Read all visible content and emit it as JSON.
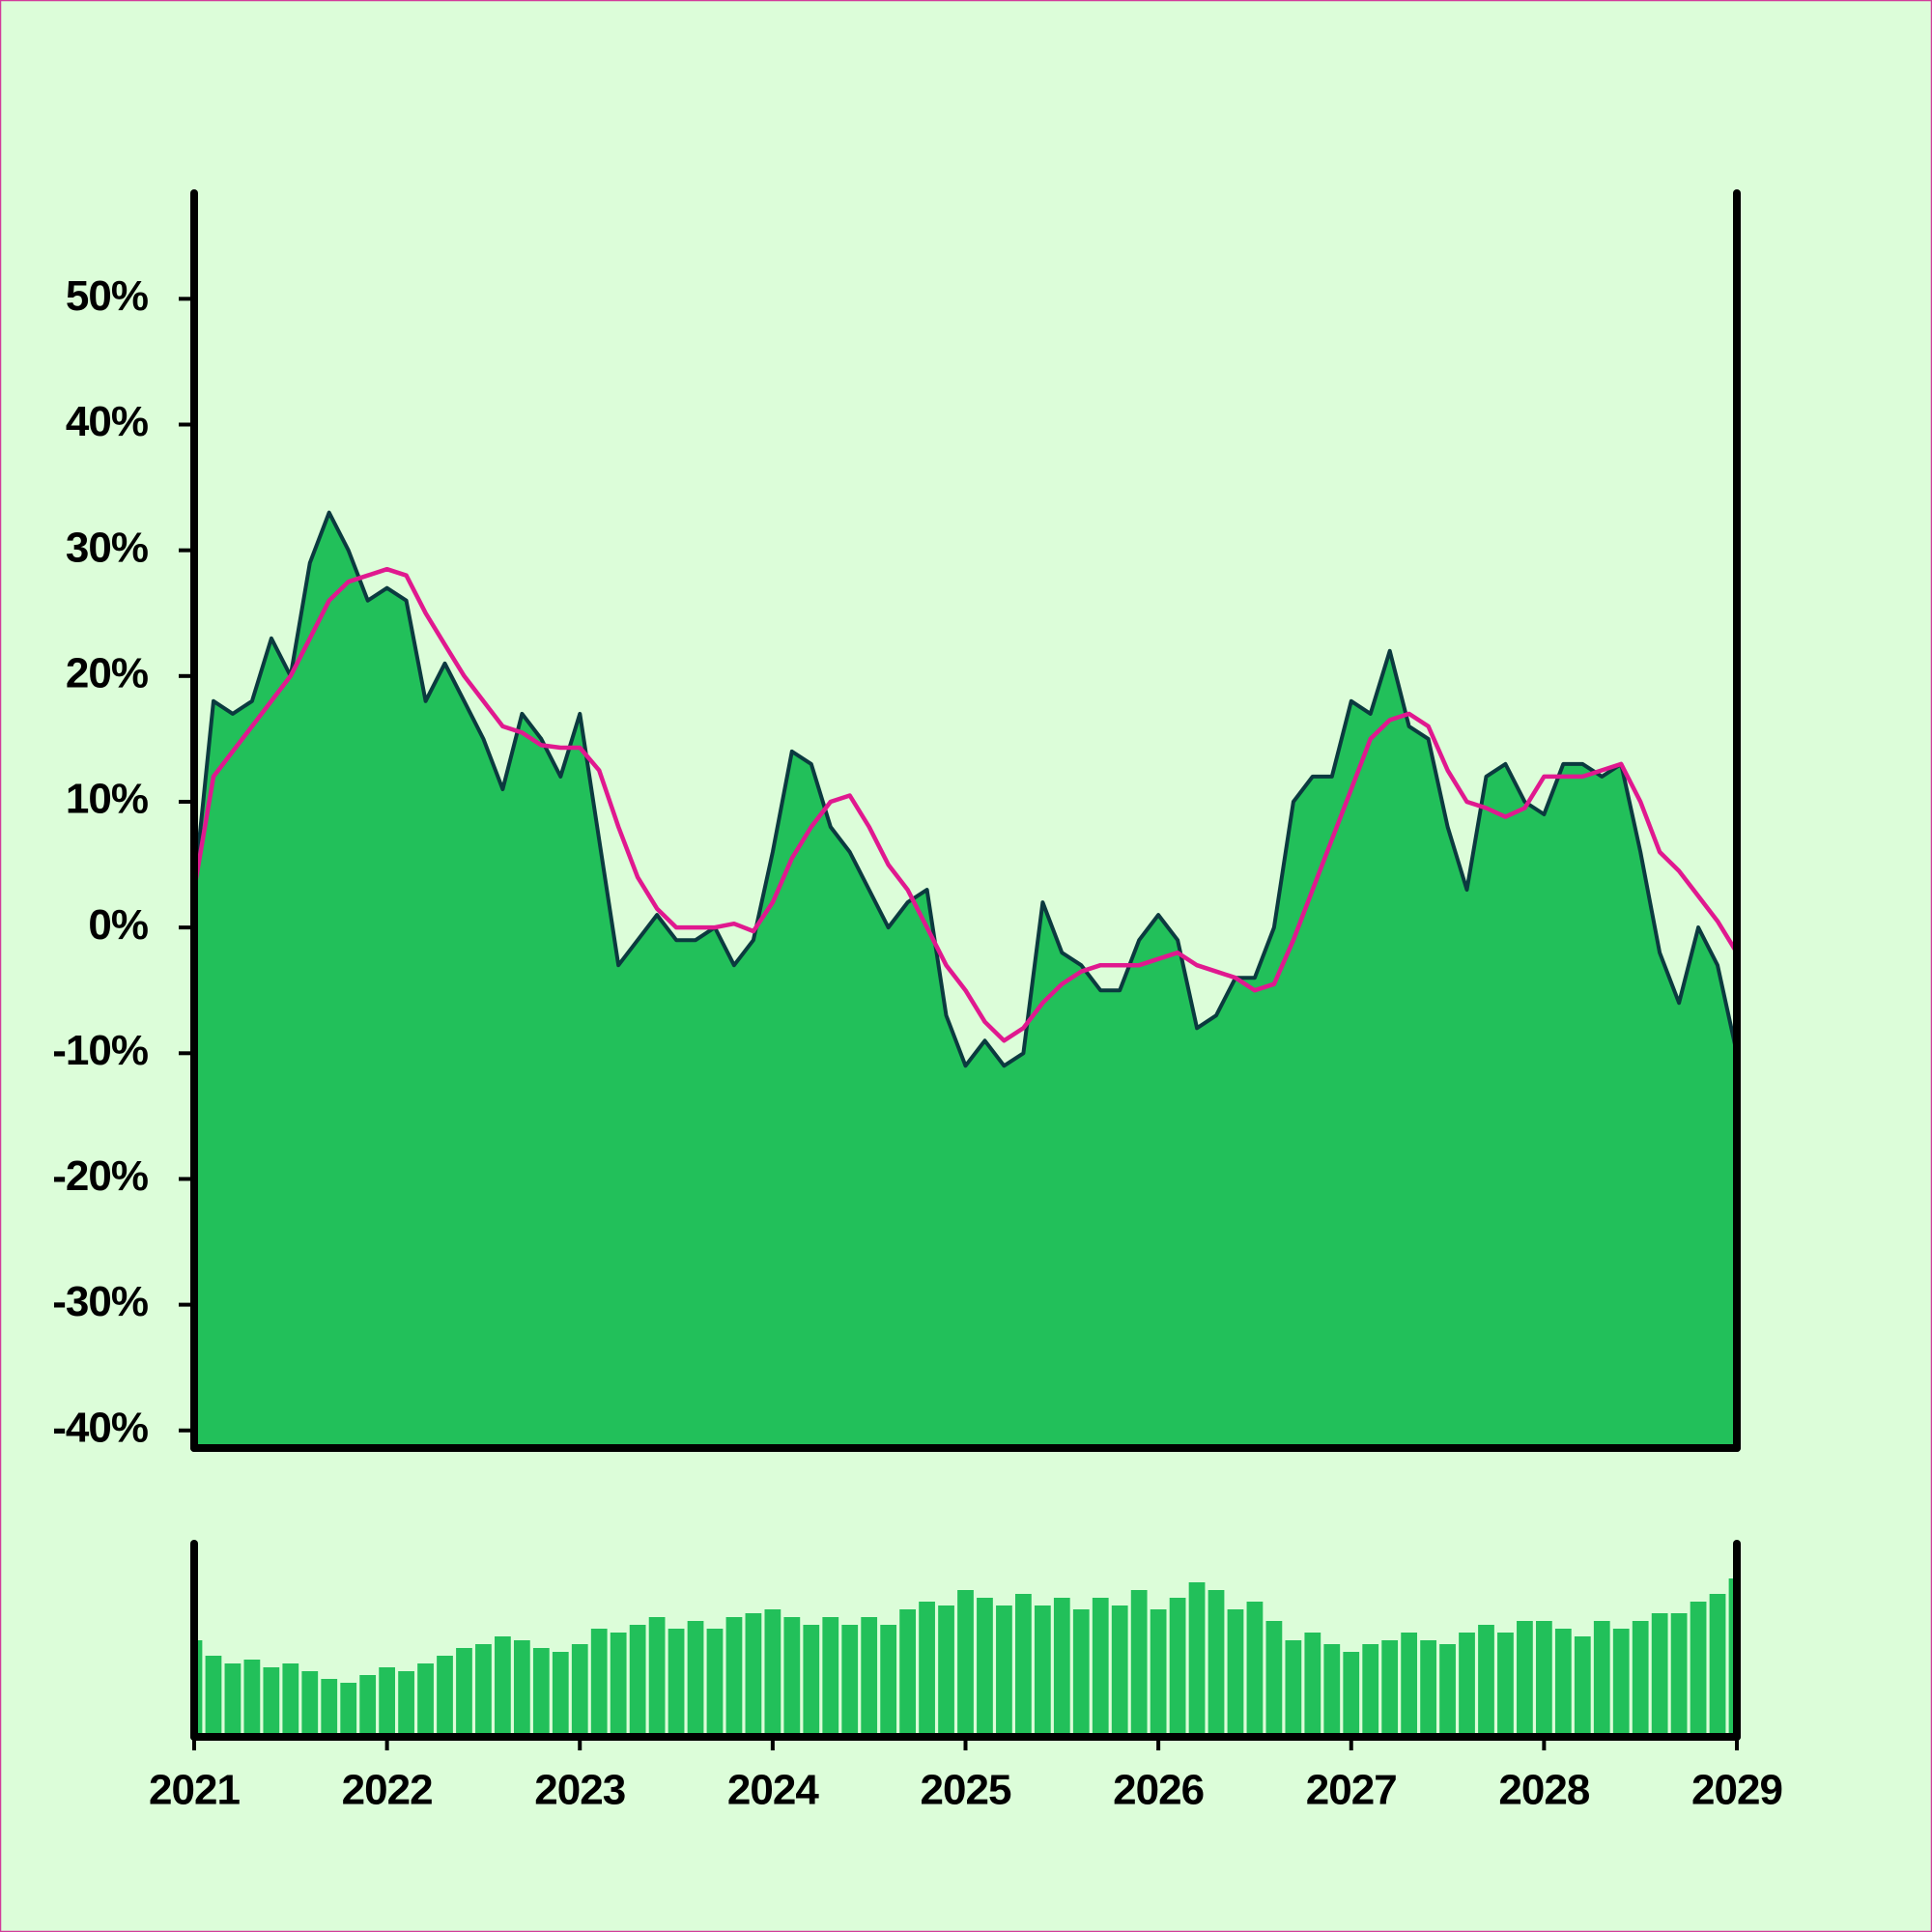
{
  "chart_data": [
    {
      "type": "area",
      "x": [
        2021,
        2021.1,
        2021.2,
        2021.3,
        2021.4,
        2021.5,
        2021.6,
        2021.7,
        2021.8,
        2021.9,
        2022,
        2022.1,
        2022.2,
        2022.3,
        2022.4,
        2022.5,
        2022.6,
        2022.7,
        2022.8,
        2022.9,
        2023,
        2023.1,
        2023.2,
        2023.3,
        2023.4,
        2023.5,
        2023.6,
        2023.7,
        2023.8,
        2023.9,
        2024,
        2024.1,
        2024.2,
        2024.3,
        2024.4,
        2024.5,
        2024.6,
        2024.7,
        2024.8,
        2024.9,
        2025,
        2025.1,
        2025.2,
        2025.3,
        2025.4,
        2025.5,
        2025.6,
        2025.7,
        2025.8,
        2025.9,
        2026,
        2026.1,
        2026.2,
        2026.3,
        2026.4,
        2026.5,
        2026.6,
        2026.7,
        2026.8,
        2026.9,
        2027,
        2027.1,
        2027.2,
        2027.3,
        2027.4,
        2027.5,
        2027.6,
        2027.7,
        2027.8,
        2027.9,
        2028,
        2028.1,
        2028.2,
        2028.3,
        2028.4,
        2028.5,
        2028.6,
        2028.7,
        2028.8,
        2028.9,
        2029
      ],
      "series": [
        {
          "color": "#0b3a3f",
          "fill": "#22c05a",
          "values": [
            3,
            18,
            17,
            18,
            23,
            20,
            29,
            33,
            30,
            26,
            27,
            26,
            18,
            21,
            18,
            15,
            11,
            17,
            15,
            12,
            17,
            7,
            -3,
            -1,
            1,
            -1,
            -1,
            0,
            -3,
            -1,
            6,
            14,
            13,
            8,
            6,
            3,
            0,
            2,
            3,
            -7,
            -11,
            -9,
            -11,
            -10,
            2,
            -2,
            -3,
            -5,
            -5,
            -1,
            1,
            -1,
            -8,
            -7,
            -4,
            -4,
            0,
            10,
            12,
            12,
            18,
            17,
            22,
            16,
            15,
            8,
            3,
            12,
            13,
            10,
            9,
            13,
            13,
            12,
            13,
            6,
            -2,
            -6,
            0,
            -3,
            -10
          ]
        },
        {
          "color": "#e0198f",
          "values": [
            3,
            12,
            14,
            16,
            18,
            20,
            23,
            26,
            27.5,
            28,
            28.5,
            28,
            25,
            22.5,
            20,
            18,
            16,
            15.5,
            14.5,
            14.3,
            14.3,
            12.5,
            8,
            4,
            1.5,
            0,
            0,
            0,
            0.3,
            -0.3,
            2,
            5.5,
            8,
            10,
            10.5,
            8,
            5,
            3,
            0,
            -3,
            -5,
            -7.5,
            -9,
            -8,
            -6,
            -4.5,
            -3.5,
            -3,
            -3,
            -3,
            -2.5,
            -2,
            -3,
            -3.5,
            -4,
            -5,
            -4.5,
            -1,
            3,
            7,
            11,
            15,
            16.5,
            17,
            16,
            12.5,
            10,
            9.5,
            8.8,
            9.5,
            12,
            12,
            12,
            12.5,
            13,
            10,
            6,
            4.5,
            2.5,
            0.5,
            -2
          ]
        }
      ],
      "xlim": [
        2021,
        2029
      ],
      "ylim": [
        -41.4,
        58.4
      ],
      "yticks": [
        {
          "value": -40,
          "label": "-40%"
        },
        {
          "value": -30,
          "label": "-30%"
        },
        {
          "value": -20,
          "label": "-20%"
        },
        {
          "value": -10,
          "label": "-10%"
        },
        {
          "value": 0,
          "label": "0%"
        },
        {
          "value": 10,
          "label": "10%"
        },
        {
          "value": 20,
          "label": "20%"
        },
        {
          "value": 30,
          "label": "30%"
        },
        {
          "value": 40,
          "label": "40%"
        },
        {
          "value": 50,
          "label": "50%"
        }
      ]
    },
    {
      "type": "bar",
      "x": [
        2021,
        2021.1,
        2021.2,
        2021.3,
        2021.4,
        2021.5,
        2021.6,
        2021.7,
        2021.8,
        2021.9,
        2022,
        2022.1,
        2022.2,
        2022.3,
        2022.4,
        2022.5,
        2022.6,
        2022.7,
        2022.8,
        2022.9,
        2023,
        2023.1,
        2023.2,
        2023.3,
        2023.4,
        2023.5,
        2023.6,
        2023.7,
        2023.8,
        2023.9,
        2024,
        2024.1,
        2024.2,
        2024.3,
        2024.4,
        2024.5,
        2024.6,
        2024.7,
        2024.8,
        2024.9,
        2025,
        2025.1,
        2025.2,
        2025.3,
        2025.4,
        2025.5,
        2025.6,
        2025.7,
        2025.8,
        2025.9,
        2026,
        2026.1,
        2026.2,
        2026.3,
        2026.4,
        2026.5,
        2026.6,
        2026.7,
        2026.8,
        2026.9,
        2027,
        2027.1,
        2027.2,
        2027.3,
        2027.4,
        2027.5,
        2027.6,
        2027.7,
        2027.8,
        2027.9,
        2028,
        2028.1,
        2028.2,
        2028.3,
        2028.4,
        2028.5,
        2028.6,
        2028.7,
        2028.8,
        2028.9,
        2029
      ],
      "values": [
        50,
        42,
        38,
        40,
        36,
        38,
        34,
        30,
        28,
        32,
        36,
        34,
        38,
        42,
        46,
        48,
        52,
        50,
        46,
        44,
        48,
        56,
        54,
        58,
        62,
        56,
        60,
        56,
        62,
        64,
        66,
        62,
        58,
        62,
        58,
        62,
        58,
        66,
        70,
        68,
        76,
        72,
        68,
        74,
        68,
        72,
        66,
        72,
        68,
        76,
        66,
        72,
        80,
        76,
        66,
        70,
        60,
        50,
        54,
        48,
        44,
        48,
        50,
        54,
        50,
        48,
        54,
        58,
        54,
        60,
        60,
        56,
        52,
        60,
        56,
        60,
        64,
        64,
        70,
        74,
        82
      ],
      "color": "#22c05a",
      "xlim": [
        2021,
        2029
      ],
      "ylim": [
        0,
        100
      ],
      "xticks": [
        2021,
        2022,
        2023,
        2024,
        2025,
        2026,
        2027,
        2028,
        2029
      ]
    }
  ]
}
